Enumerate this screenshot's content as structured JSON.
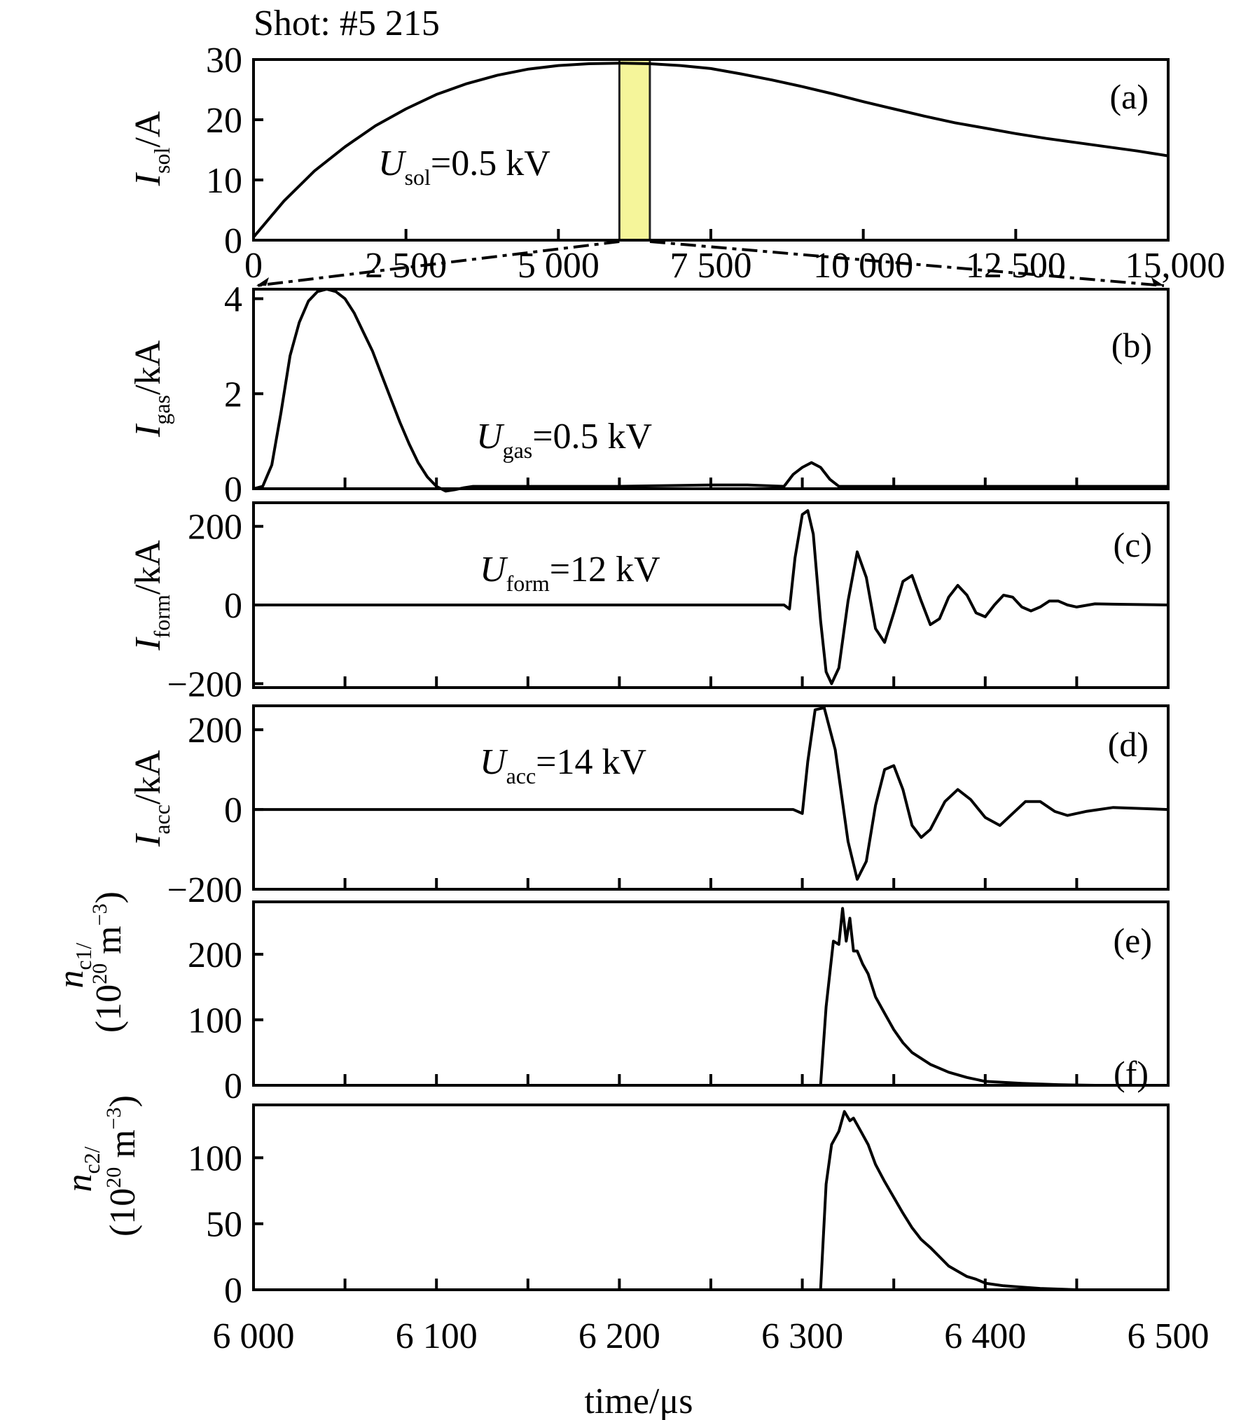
{
  "figure": {
    "title": "Shot: #5 215",
    "xlabel": "time/μs",
    "highlight_color": "#f5f59a"
  },
  "chart_data": [
    {
      "id": "a",
      "type": "line",
      "panel_label": "(a)",
      "ylabel_main": "I",
      "ylabel_sub": "sol",
      "ylabel_unit": "/A",
      "annotation": {
        "main": "U",
        "sub": "sol",
        "rest": "=0.5 kV"
      },
      "xlim": [
        0,
        15000
      ],
      "ylim": [
        0,
        30
      ],
      "xticks": [
        0,
        2500,
        5000,
        7500,
        10000,
        12500,
        15000
      ],
      "xtick_labels": [
        "0",
        "2 500",
        "5 000",
        "7 500",
        "10 000",
        "12 500",
        "15,000"
      ],
      "yticks": [
        0,
        10,
        20,
        30
      ],
      "ytick_labels": [
        "0",
        "10",
        "20",
        "30"
      ],
      "highlight_range": [
        6000,
        6500
      ],
      "x": [
        0,
        500,
        1000,
        1500,
        2000,
        2500,
        3000,
        3500,
        4000,
        4500,
        5000,
        5500,
        6000,
        6500,
        7000,
        7500,
        8000,
        8500,
        9000,
        9500,
        10000,
        10500,
        11000,
        11500,
        12000,
        12500,
        13000,
        13500,
        14000,
        14500,
        15000
      ],
      "y": [
        0.5,
        6.5,
        11.5,
        15.5,
        19.0,
        21.8,
        24.2,
        26.0,
        27.4,
        28.4,
        29.0,
        29.3,
        29.4,
        29.3,
        29.0,
        28.5,
        27.6,
        26.6,
        25.5,
        24.3,
        23.0,
        21.8,
        20.6,
        19.5,
        18.6,
        17.7,
        16.9,
        16.2,
        15.5,
        14.8,
        14.0
      ]
    },
    {
      "id": "b",
      "type": "line",
      "panel_label": "(b)",
      "ylabel_main": "I",
      "ylabel_sub": "gas",
      "ylabel_unit": "/kA",
      "annotation": {
        "main": "U",
        "sub": "gas",
        "rest": "=0.5 kV"
      },
      "xlim": [
        6000,
        6500
      ],
      "ylim": [
        0,
        4.2
      ],
      "yticks": [
        0,
        2,
        4
      ],
      "ytick_labels": [
        "0",
        "2",
        "4"
      ],
      "x": [
        6000,
        6005,
        6010,
        6015,
        6020,
        6025,
        6030,
        6035,
        6040,
        6045,
        6050,
        6055,
        6060,
        6065,
        6070,
        6075,
        6080,
        6085,
        6090,
        6095,
        6100,
        6105,
        6110,
        6115,
        6120,
        6130,
        6150,
        6200,
        6250,
        6270,
        6290,
        6295,
        6300,
        6305,
        6310,
        6315,
        6320,
        6330,
        6350,
        6400,
        6450,
        6500
      ],
      "y": [
        0.0,
        0.05,
        0.5,
        1.6,
        2.8,
        3.5,
        3.95,
        4.15,
        4.2,
        4.15,
        4.0,
        3.7,
        3.3,
        2.9,
        2.4,
        1.9,
        1.4,
        0.95,
        0.55,
        0.25,
        0.05,
        -0.05,
        -0.02,
        0.02,
        0.05,
        0.05,
        0.05,
        0.05,
        0.08,
        0.08,
        0.05,
        0.3,
        0.45,
        0.55,
        0.45,
        0.2,
        0.05,
        0.05,
        0.05,
        0.05,
        0.05,
        0.05
      ]
    },
    {
      "id": "c",
      "type": "line",
      "panel_label": "(c)",
      "ylabel_main": "I",
      "ylabel_sub": "form",
      "ylabel_unit": "/kA",
      "annotation": {
        "main": "U",
        "sub": "form",
        "rest": "=12 kV"
      },
      "xlim": [
        6000,
        6500
      ],
      "ylim": [
        -210,
        260
      ],
      "yticks": [
        -200,
        0,
        200
      ],
      "ytick_labels": [
        "−200",
        "0",
        "200"
      ],
      "x": [
        6000,
        6290,
        6293,
        6296,
        6300,
        6303,
        6306,
        6310,
        6313,
        6316,
        6320,
        6325,
        6330,
        6335,
        6340,
        6345,
        6350,
        6355,
        6360,
        6365,
        6370,
        6375,
        6380,
        6385,
        6390,
        6395,
        6400,
        6405,
        6410,
        6415,
        6420,
        6425,
        6430,
        6435,
        6440,
        6445,
        6450,
        6460,
        6470,
        6500
      ],
      "y": [
        0,
        0,
        -10,
        120,
        230,
        240,
        180,
        -40,
        -170,
        -200,
        -160,
        10,
        135,
        70,
        -60,
        -95,
        -20,
        60,
        75,
        10,
        -50,
        -35,
        20,
        50,
        25,
        -20,
        -30,
        0,
        25,
        20,
        -5,
        -15,
        -5,
        10,
        10,
        0,
        -5,
        3,
        2,
        0
      ]
    },
    {
      "id": "d",
      "type": "line",
      "panel_label": "(d)",
      "ylabel_main": "I",
      "ylabel_sub": "acc",
      "ylabel_unit": "/kA",
      "annotation": {
        "main": "U",
        "sub": "acc",
        "rest": "=14 kV"
      },
      "xlim": [
        6000,
        6500
      ],
      "ylim": [
        -200,
        260
      ],
      "yticks": [
        -200,
        0,
        200
      ],
      "ytick_labels": [
        "−200",
        "0",
        "200"
      ],
      "x": [
        6000,
        6290,
        6295,
        6300,
        6303,
        6307,
        6312,
        6318,
        6325,
        6330,
        6335,
        6340,
        6345,
        6350,
        6355,
        6360,
        6365,
        6370,
        6378,
        6385,
        6392,
        6400,
        6408,
        6415,
        6422,
        6430,
        6438,
        6445,
        6455,
        6470,
        6500
      ],
      "y": [
        0,
        0,
        0,
        -10,
        120,
        250,
        255,
        150,
        -80,
        -175,
        -130,
        10,
        100,
        110,
        50,
        -40,
        -70,
        -50,
        20,
        50,
        25,
        -20,
        -40,
        -10,
        20,
        20,
        -5,
        -15,
        -5,
        5,
        0
      ]
    },
    {
      "id": "e",
      "type": "line",
      "panel_label": "(e)",
      "ylabel_main": "n",
      "ylabel_sub": "c1",
      "ylabel_unit_line2": "(10",
      "ylabel_exp": "20",
      "ylabel_unit_tail": " m",
      "ylabel_exp2": "−3",
      "ylabel_close": ")",
      "xlim": [
        6000,
        6500
      ],
      "ylim": [
        0,
        280
      ],
      "yticks": [
        0,
        100,
        200
      ],
      "ytick_labels": [
        "0",
        "100",
        "200"
      ],
      "x": [
        6000,
        6310,
        6313,
        6317,
        6320,
        6322,
        6324,
        6326,
        6328,
        6330,
        6333,
        6336,
        6340,
        6345,
        6350,
        6355,
        6360,
        6370,
        6380,
        6390,
        6400,
        6420,
        6440,
        6460,
        6500
      ],
      "y": [
        0,
        0,
        120,
        220,
        215,
        270,
        220,
        255,
        205,
        205,
        185,
        170,
        135,
        110,
        85,
        65,
        50,
        32,
        20,
        12,
        6,
        3,
        1,
        0,
        0
      ]
    },
    {
      "id": "f",
      "type": "line",
      "panel_label": "(f)",
      "ylabel_main": "n",
      "ylabel_sub": "c2",
      "ylabel_unit_line2": "(10",
      "ylabel_exp": "20",
      "ylabel_unit_tail": " m",
      "ylabel_exp2": "−3",
      "ylabel_close": ")",
      "xlim": [
        6000,
        6500
      ],
      "ylim": [
        0,
        140
      ],
      "yticks": [
        0,
        50,
        100
      ],
      "ytick_labels": [
        "0",
        "50",
        "100"
      ],
      "x": [
        6000,
        6300,
        6310,
        6313,
        6316,
        6320,
        6323,
        6326,
        6328,
        6332,
        6336,
        6340,
        6345,
        6350,
        6355,
        6360,
        6365,
        6370,
        6375,
        6380,
        6385,
        6390,
        6395,
        6400,
        6405,
        6410,
        6420,
        6430,
        6450,
        6500
      ],
      "y": [
        0,
        0,
        0,
        80,
        110,
        120,
        135,
        128,
        130,
        120,
        110,
        95,
        82,
        70,
        58,
        47,
        38,
        32,
        25,
        18,
        14,
        10,
        8,
        5,
        4,
        3,
        2,
        1,
        0,
        0
      ]
    }
  ],
  "bottom_axis": {
    "xticks": [
      6000,
      6100,
      6200,
      6300,
      6400,
      6500
    ],
    "xtick_labels": [
      "6 000",
      "6 100",
      "6 200",
      "6 300",
      "6 400",
      "6 500"
    ]
  }
}
